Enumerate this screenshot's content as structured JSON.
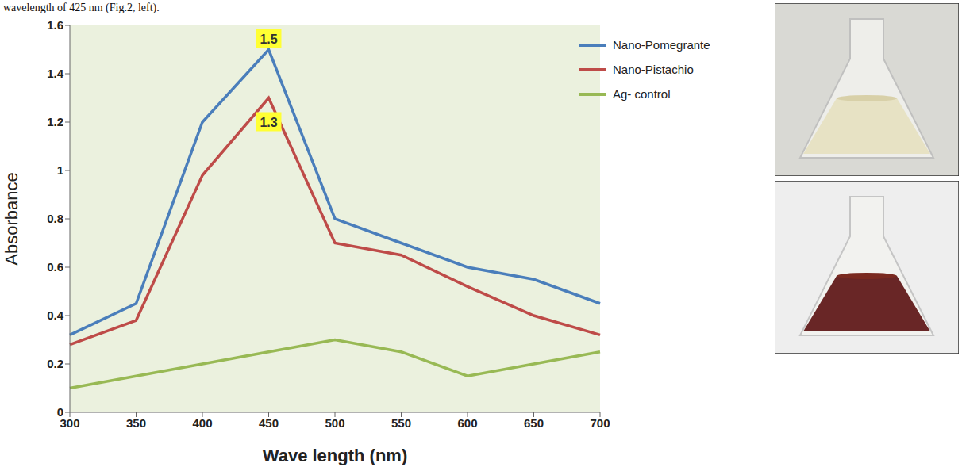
{
  "chart_data": {
    "type": "line",
    "caption": "wavelength of 425 nm (Fig.2, left).",
    "x_label": "Wave length (nm)",
    "y_label": "Absorbance",
    "categories": [
      "300",
      "350",
      "400",
      "450",
      "500",
      "550",
      "600",
      "650",
      "700"
    ],
    "series": [
      {
        "name": "Nano-Pomegrante",
        "color": "#4a7ebb",
        "values": [
          0.32,
          0.45,
          1.2,
          1.5,
          0.8,
          0.7,
          0.6,
          0.55,
          0.45
        ]
      },
      {
        "name": "Nano-Pistachio",
        "color": "#be4b48",
        "values": [
          0.28,
          0.38,
          0.98,
          1.3,
          0.7,
          0.65,
          0.52,
          0.4,
          0.32
        ]
      },
      {
        "name": "Ag- control",
        "color": "#98b954",
        "values": [
          0.1,
          0.15,
          0.2,
          0.25,
          0.3,
          0.25,
          0.15,
          0.2,
          0.25
        ]
      }
    ],
    "ylim": [
      0,
      1.6
    ],
    "yticks": [
      0,
      0.2,
      0.4,
      0.6,
      0.8,
      1,
      1.2,
      1.4,
      1.6
    ],
    "grid": false,
    "legend": "upper right",
    "annotations": [
      {
        "text": "1.5",
        "x": "450",
        "y": 1.5
      },
      {
        "text": "1.3",
        "x": "450",
        "y": 1.3
      }
    ]
  }
}
